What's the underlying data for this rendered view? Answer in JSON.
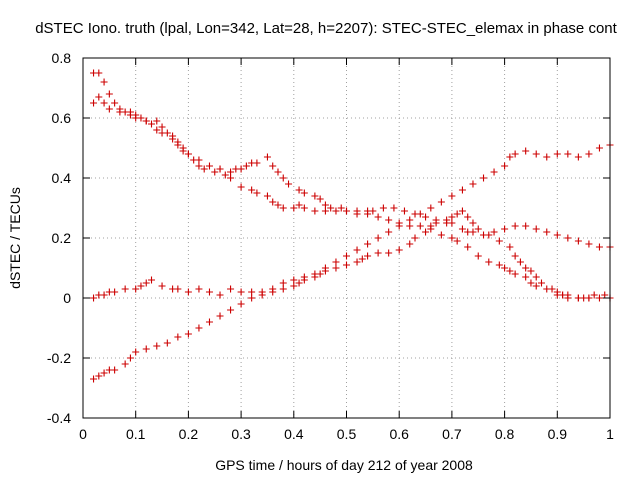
{
  "chart_data": {
    "type": "scatter",
    "title": "dSTEC Iono. truth (lpal, Lon=342, Lat=28, h=2207): STEC-STEC_elemax in phase cont",
    "xlabel": "GPS time / hours of day 212 of year 2008",
    "ylabel": "dSTEC  / TECUs",
    "xlim": [
      0,
      1
    ],
    "ylim": [
      -0.4,
      0.8
    ],
    "x_ticks": [
      0,
      0.1,
      0.2,
      0.3,
      0.4,
      0.5,
      0.6,
      0.7,
      0.8,
      0.9,
      1
    ],
    "x_tick_labels": [
      "0",
      "0.1",
      "0.2",
      "0.3",
      "0.4",
      "0.5",
      "0.6",
      "0.7",
      "0.8",
      "0.9",
      "1"
    ],
    "y_ticks": [
      -0.4,
      -0.2,
      0,
      0.2,
      0.4,
      0.6,
      0.8
    ],
    "y_tick_labels": [
      "-0.4",
      "-0.2",
      "0",
      "0.2",
      "0.4",
      "0.6",
      "0.8"
    ],
    "grid": true,
    "marker": "+",
    "marker_color": "#cc0000",
    "series": [
      {
        "x": [
          0.02,
          0.03,
          0.04,
          0.05,
          0.06,
          0.07,
          0.08,
          0.09,
          0.1,
          0.12,
          0.13,
          0.14,
          0.15,
          0.17,
          0.18,
          0.19,
          0.2,
          0.22,
          0.24,
          0.26,
          0.27,
          0.28,
          0.3,
          0.32,
          0.33,
          0.35,
          0.36,
          0.37,
          0.38,
          0.4,
          0.41,
          0.42,
          0.44,
          0.46,
          0.48,
          0.5,
          0.52,
          0.54,
          0.56,
          0.58,
          0.6,
          0.62,
          0.64,
          0.66,
          0.68,
          0.7,
          0.71,
          0.73,
          0.75,
          0.77,
          0.79,
          0.8,
          0.81,
          0.82,
          0.84,
          0.85,
          0.86,
          0.88,
          0.9,
          0.91,
          0.92,
          0.94,
          0.95,
          0.96,
          0.97,
          0.99,
          1.0
        ],
        "y": [
          0.75,
          0.75,
          0.72,
          0.68,
          0.65,
          0.63,
          0.62,
          0.61,
          0.6,
          0.59,
          0.58,
          0.56,
          0.55,
          0.53,
          0.51,
          0.49,
          0.48,
          0.46,
          0.44,
          0.43,
          0.41,
          0.4,
          0.37,
          0.36,
          0.35,
          0.34,
          0.32,
          0.31,
          0.3,
          0.3,
          0.31,
          0.3,
          0.29,
          0.29,
          0.29,
          0.29,
          0.29,
          0.28,
          0.27,
          0.26,
          0.25,
          0.24,
          0.24,
          0.23,
          0.21,
          0.2,
          0.19,
          0.17,
          0.14,
          0.12,
          0.11,
          0.1,
          0.09,
          0.08,
          0.07,
          0.05,
          0.04,
          0.03,
          0.01,
          0.01,
          0.0,
          0.0,
          0.0,
          0.0,
          0.01,
          0.01,
          0.0
        ]
      },
      {
        "x": [
          0.02,
          0.03,
          0.04,
          0.05,
          0.07,
          0.09,
          0.1,
          0.11,
          0.12,
          0.14,
          0.15,
          0.16,
          0.17,
          0.18,
          0.19,
          0.2,
          0.21,
          0.22,
          0.23,
          0.25,
          0.26,
          0.28,
          0.29,
          0.3,
          0.31,
          0.32,
          0.33,
          0.35,
          0.36,
          0.37,
          0.38,
          0.39,
          0.41,
          0.42,
          0.44,
          0.45,
          0.46,
          0.47,
          0.49,
          0.5,
          0.52,
          0.54,
          0.55,
          0.57,
          0.59,
          0.61,
          0.63,
          0.65,
          0.67,
          0.69,
          0.7,
          0.72,
          0.73,
          0.74,
          0.76,
          0.78,
          0.8,
          0.82,
          0.84,
          0.86,
          0.88,
          0.9,
          0.92,
          0.94,
          0.96,
          0.98,
          1.0
        ],
        "y": [
          0.65,
          0.67,
          0.65,
          0.63,
          0.62,
          0.62,
          0.61,
          0.6,
          0.59,
          0.59,
          0.57,
          0.55,
          0.54,
          0.52,
          0.5,
          0.48,
          0.46,
          0.44,
          0.43,
          0.42,
          0.43,
          0.42,
          0.43,
          0.43,
          0.44,
          0.45,
          0.45,
          0.47,
          0.44,
          0.42,
          0.4,
          0.38,
          0.36,
          0.35,
          0.34,
          0.33,
          0.31,
          0.3,
          0.3,
          0.29,
          0.28,
          0.29,
          0.29,
          0.3,
          0.3,
          0.29,
          0.28,
          0.27,
          0.26,
          0.25,
          0.25,
          0.23,
          0.22,
          0.22,
          0.21,
          0.22,
          0.23,
          0.24,
          0.24,
          0.23,
          0.22,
          0.21,
          0.2,
          0.19,
          0.18,
          0.17,
          0.17
        ]
      },
      {
        "x": [
          0.02,
          0.03,
          0.04,
          0.05,
          0.06,
          0.08,
          0.1,
          0.11,
          0.12,
          0.13,
          0.15,
          0.17,
          0.18,
          0.2,
          0.22,
          0.24,
          0.26,
          0.28,
          0.3,
          0.32,
          0.34,
          0.36,
          0.38,
          0.4,
          0.41,
          0.42,
          0.44,
          0.45,
          0.46,
          0.48,
          0.5,
          0.52,
          0.53,
          0.54,
          0.56,
          0.58,
          0.6,
          0.62,
          0.63,
          0.65,
          0.66,
          0.67,
          0.69,
          0.7,
          0.71,
          0.72,
          0.73,
          0.74,
          0.75,
          0.77,
          0.79,
          0.81,
          0.82,
          0.83,
          0.84,
          0.85,
          0.86,
          0.87,
          0.89,
          0.9,
          0.91,
          0.92,
          0.94,
          0.96,
          0.98,
          1.0
        ],
        "y": [
          0.0,
          0.01,
          0.01,
          0.02,
          0.02,
          0.03,
          0.03,
          0.04,
          0.05,
          0.06,
          0.04,
          0.03,
          0.03,
          0.02,
          0.03,
          0.02,
          0.01,
          0.03,
          0.02,
          0.02,
          0.01,
          0.02,
          0.03,
          0.04,
          0.05,
          0.06,
          0.07,
          0.08,
          0.09,
          0.1,
          0.11,
          0.12,
          0.13,
          0.14,
          0.15,
          0.15,
          0.16,
          0.18,
          0.2,
          0.22,
          0.24,
          0.25,
          0.26,
          0.27,
          0.28,
          0.29,
          0.27,
          0.25,
          0.23,
          0.21,
          0.19,
          0.17,
          0.14,
          0.12,
          0.1,
          0.09,
          0.07,
          0.05,
          0.03,
          0.02,
          0.01,
          0.01,
          0.0,
          0.0,
          0.0,
          0.0
        ]
      },
      {
        "x": [
          0.02,
          0.03,
          0.04,
          0.05,
          0.06,
          0.08,
          0.09,
          0.1,
          0.12,
          0.14,
          0.16,
          0.18,
          0.2,
          0.22,
          0.24,
          0.26,
          0.28,
          0.3,
          0.32,
          0.34,
          0.36,
          0.38,
          0.4,
          0.42,
          0.44,
          0.46,
          0.48,
          0.5,
          0.52,
          0.54,
          0.56,
          0.58,
          0.6,
          0.62,
          0.64,
          0.66,
          0.68,
          0.7,
          0.72,
          0.74,
          0.76,
          0.78,
          0.8,
          0.81,
          0.82,
          0.84,
          0.86,
          0.88,
          0.9,
          0.92,
          0.94,
          0.96,
          0.98,
          1.0
        ],
        "y": [
          -0.27,
          -0.26,
          -0.25,
          -0.24,
          -0.24,
          -0.22,
          -0.2,
          -0.18,
          -0.17,
          -0.16,
          -0.15,
          -0.13,
          -0.12,
          -0.1,
          -0.08,
          -0.06,
          -0.04,
          -0.02,
          0.0,
          0.02,
          0.03,
          0.05,
          0.06,
          0.07,
          0.08,
          0.1,
          0.12,
          0.14,
          0.16,
          0.18,
          0.2,
          0.22,
          0.24,
          0.26,
          0.28,
          0.3,
          0.32,
          0.34,
          0.36,
          0.38,
          0.4,
          0.42,
          0.44,
          0.47,
          0.48,
          0.49,
          0.48,
          0.47,
          0.48,
          0.48,
          0.47,
          0.48,
          0.5,
          0.51
        ]
      }
    ]
  }
}
